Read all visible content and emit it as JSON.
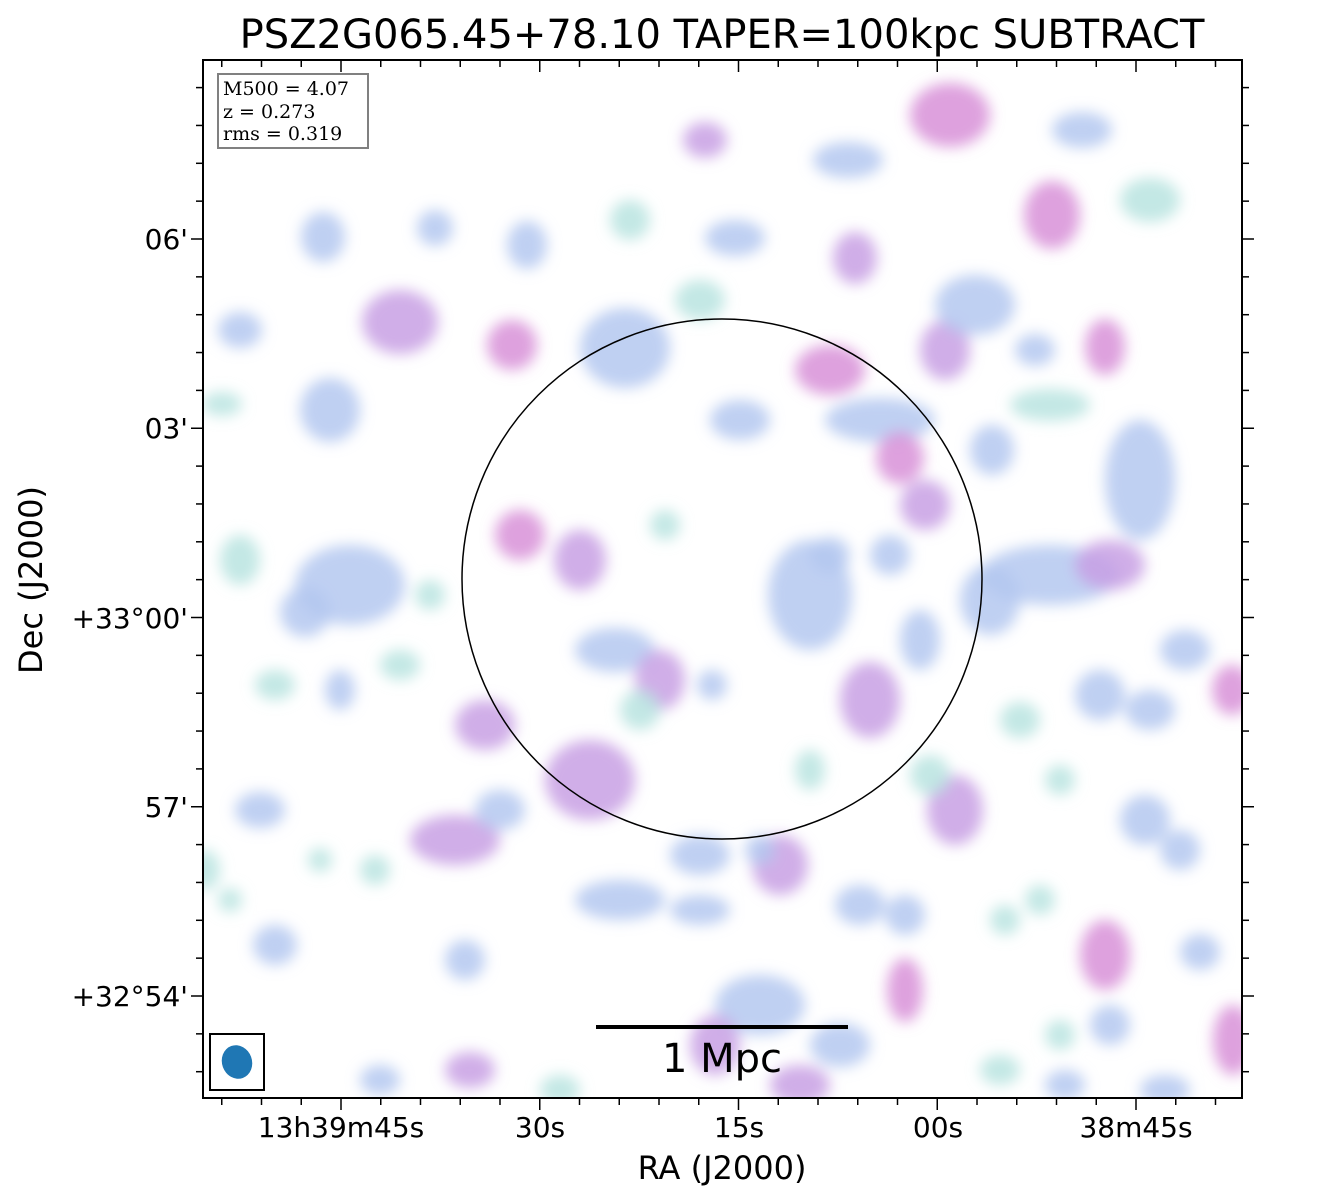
{
  "chart_data": {
    "type": "heatmap",
    "title": "PSZ2G065.45+78.10 TAPER=100kpc SUBTRACT",
    "xlabel": "RA (J2000)",
    "ylabel": "Dec (J2000)",
    "x_ticks": [
      "13h39m45s",
      "30s",
      "15s",
      "00s",
      "38m45s"
    ],
    "y_ticks": [
      "06'",
      "03'",
      "+33°00'",
      "57'",
      "+32°54'"
    ],
    "info": {
      "m500": "M500 = 4.07",
      "z": "z = 0.273",
      "rms": "rms = 0.319"
    },
    "scalebar_label": "1 Mpc",
    "colormap": [
      "#b8e4e0",
      "#b4c8f0",
      "#c8a0e4",
      "#d890d8"
    ],
    "beam_color": "#1f77b4",
    "r500_circle_color": "#000000",
    "grid": false
  }
}
